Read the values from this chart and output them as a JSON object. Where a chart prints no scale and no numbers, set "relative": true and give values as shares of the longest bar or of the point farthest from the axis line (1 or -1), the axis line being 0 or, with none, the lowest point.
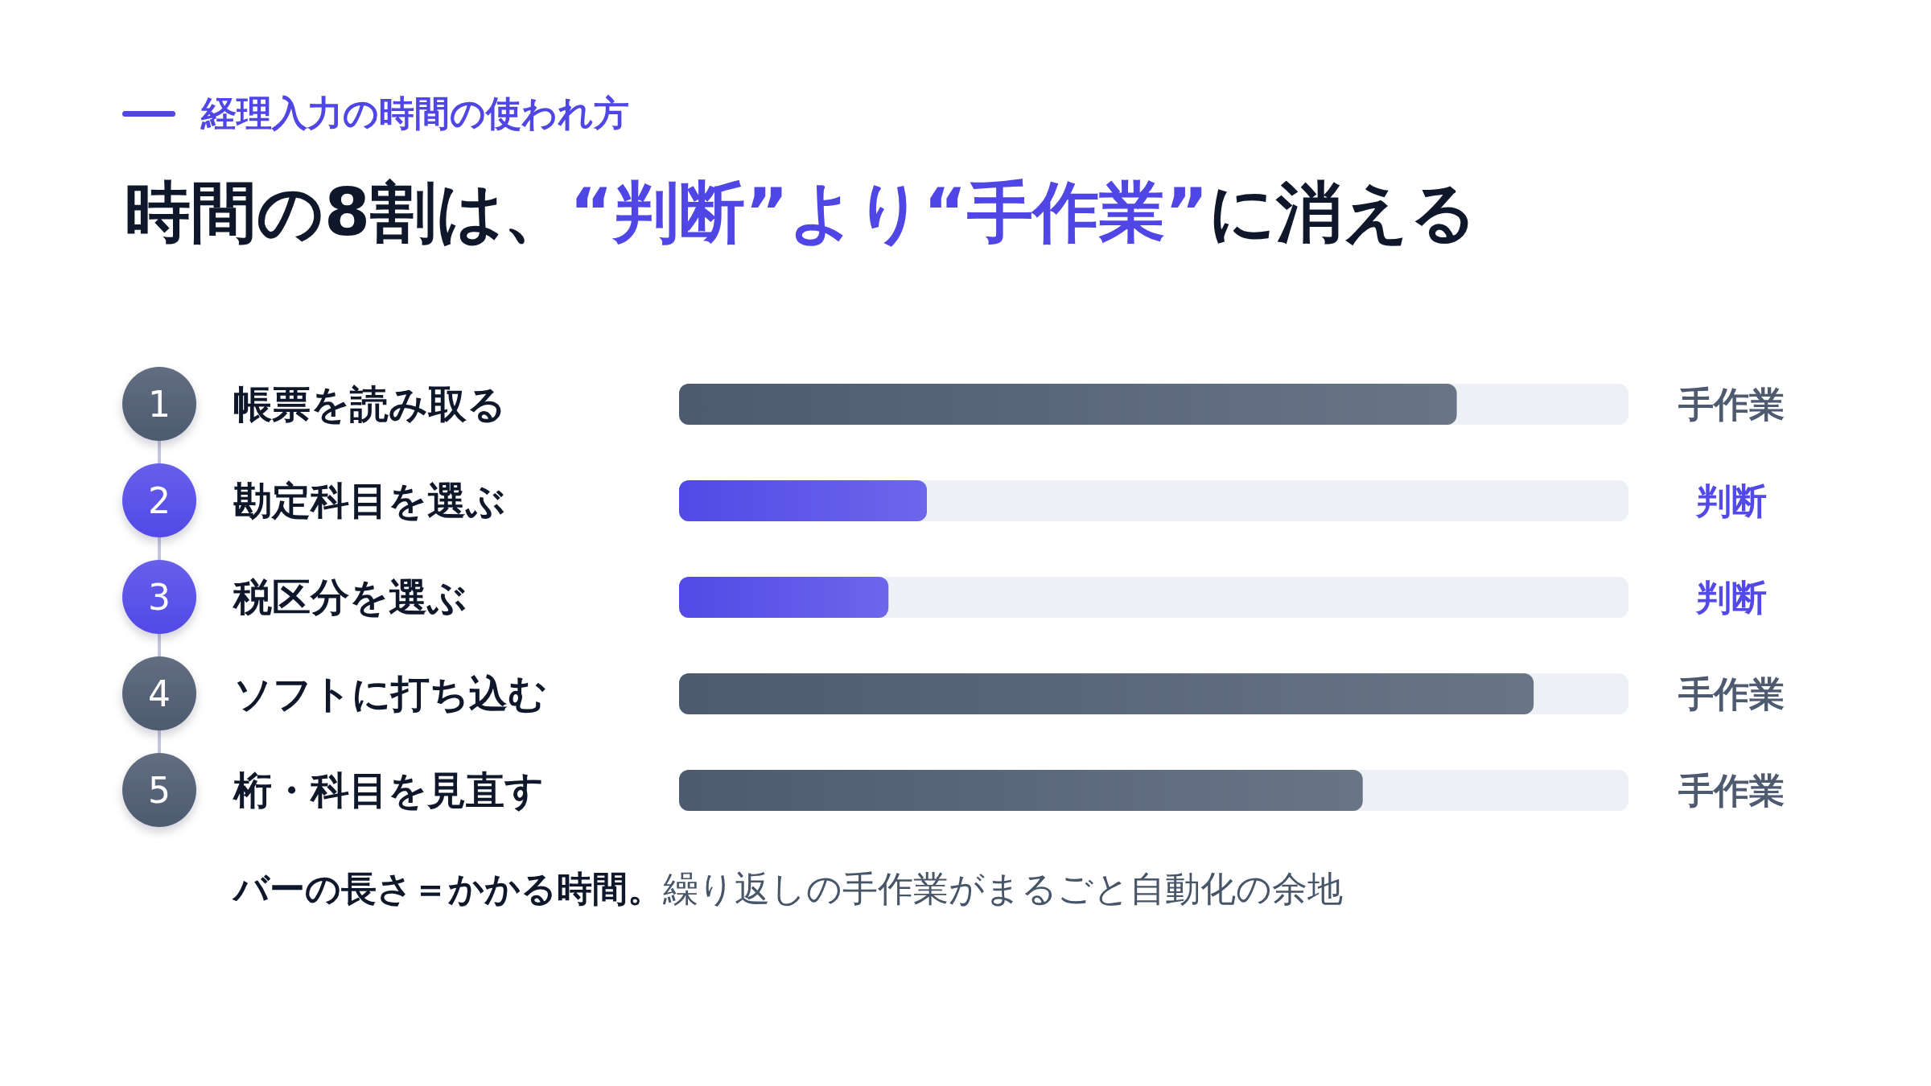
{
  "chart_data": {
    "type": "bar",
    "orientation": "horizontal",
    "relative": true,
    "stacked": true,
    "tick_labels": "y",
    "subtitle": "経理入力の時間の使われ方",
    "title": "時間の8割は、“判断”より“手作業”に消える",
    "categories": [
      "帳票を読み取る",
      "勘定科目を選ぶ",
      "税区分を選ぶ",
      "ソフトに打ち込む",
      "桁・科目を見直す"
    ],
    "series": [
      {
        "name": "手作業",
        "color": "#4d5a70",
        "values": [
          0.91,
          null,
          null,
          1,
          0.8
        ]
      },
      {
        "name": "判断",
        "color": "#5249e7",
        "values": [
          null,
          0.29,
          0.245,
          null,
          null
        ]
      }
    ],
    "annotations": [
      "1",
      "2",
      "3",
      "4",
      "5",
      "バーの長さ＝かかる時間。",
      "繰り返しの手作業がまるごと自動化の余地"
    ]
  }
}
